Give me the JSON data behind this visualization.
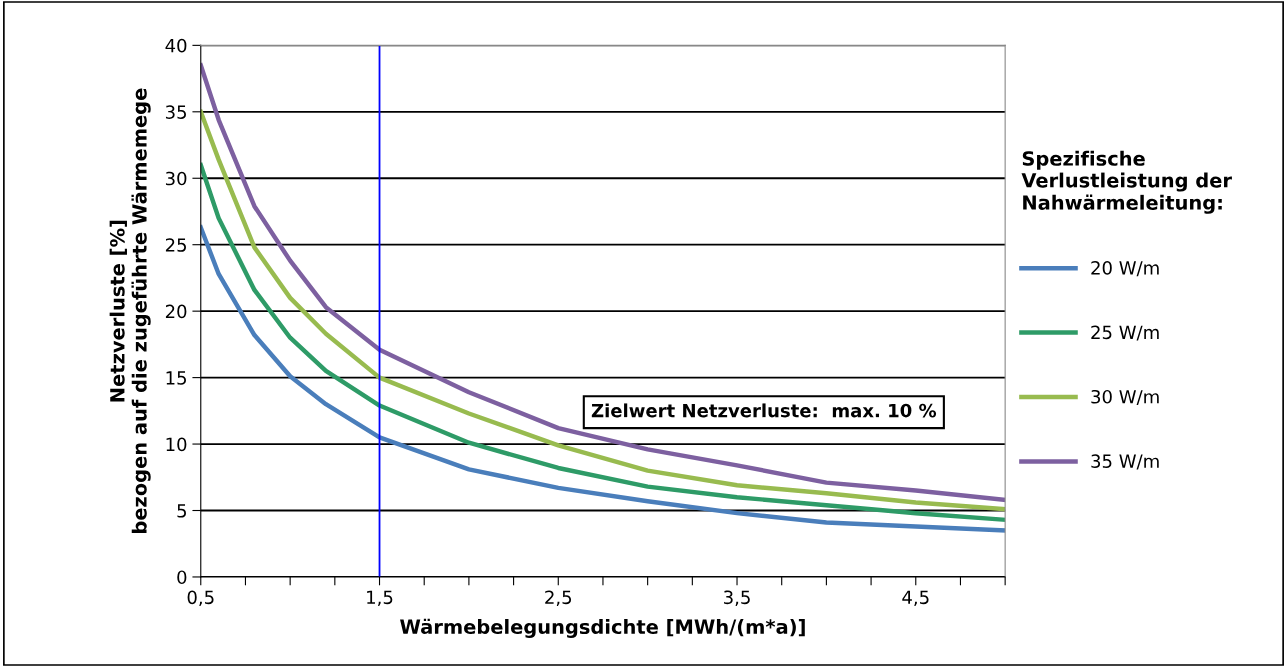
{
  "chart_data": {
    "type": "line",
    "xlabel": "Wärmebelegungsdichte [MWh/(m*a)]",
    "ylabel": "Netzverluste [%]\nbezogen auf die zugeführte Wärmemege",
    "legend_title": "Spezifische\nVerlustleistung der\nNahwärmeleitung:",
    "x": [
      0.5,
      0.6,
      0.8,
      1.0,
      1.2,
      1.5,
      2.0,
      2.5,
      3.0,
      3.5,
      4.0,
      4.5,
      5.0
    ],
    "series": [
      {
        "name": "20 W/m",
        "color": "#4a7ebb",
        "values": [
          26.3,
          22.8,
          18.2,
          15.1,
          13.0,
          10.5,
          8.1,
          6.7,
          5.7,
          4.8,
          4.1,
          3.8,
          3.5
        ]
      },
      {
        "name": "25 W/m",
        "color": "#2e9b67",
        "values": [
          31.0,
          27.0,
          21.6,
          18.0,
          15.5,
          12.9,
          10.1,
          8.2,
          6.8,
          6.0,
          5.4,
          4.8,
          4.3
        ]
      },
      {
        "name": "30 W/m",
        "color": "#98bb4f",
        "values": [
          35.0,
          31.4,
          24.8,
          21.0,
          18.3,
          15.0,
          12.3,
          9.9,
          8.0,
          6.9,
          6.3,
          5.6,
          5.1
        ]
      },
      {
        "name": "35 W/m",
        "color": "#7d60a0",
        "values": [
          38.5,
          34.4,
          27.9,
          23.8,
          20.3,
          17.1,
          13.9,
          11.2,
          9.6,
          8.4,
          7.1,
          6.5,
          5.8
        ]
      }
    ],
    "xlim": [
      0.5,
      5.0
    ],
    "xticks": [
      {
        "value": 0.5,
        "label": "0,5"
      },
      {
        "value": 0.75,
        "label": null
      },
      {
        "value": 1.0,
        "label": null
      },
      {
        "value": 1.25,
        "label": null
      },
      {
        "value": 1.5,
        "label": "1,5"
      },
      {
        "value": 1.75,
        "label": null
      },
      {
        "value": 2.0,
        "label": null
      },
      {
        "value": 2.25,
        "label": null
      },
      {
        "value": 2.5,
        "label": "2,5"
      },
      {
        "value": 2.75,
        "label": null
      },
      {
        "value": 3.0,
        "label": null
      },
      {
        "value": 3.25,
        "label": null
      },
      {
        "value": 3.5,
        "label": "3,5"
      },
      {
        "value": 3.75,
        "label": null
      },
      {
        "value": 4.0,
        "label": null
      },
      {
        "value": 4.25,
        "label": null
      },
      {
        "value": 4.5,
        "label": "4,5"
      },
      {
        "value": 4.75,
        "label": null
      },
      {
        "value": 5.0,
        "label": null
      }
    ],
    "ylim": [
      0,
      40
    ],
    "yticks": [
      0,
      5,
      10,
      15,
      20,
      25,
      30,
      35,
      40
    ],
    "grid": "y",
    "legend": "right",
    "marker": "none",
    "line_style": "solid",
    "ref_lines": [
      {
        "axis": "x",
        "value": 1.5,
        "color": "#0000ff"
      }
    ],
    "annotations": [
      "Zielwert Netzverluste:  max. 10 %"
    ]
  }
}
